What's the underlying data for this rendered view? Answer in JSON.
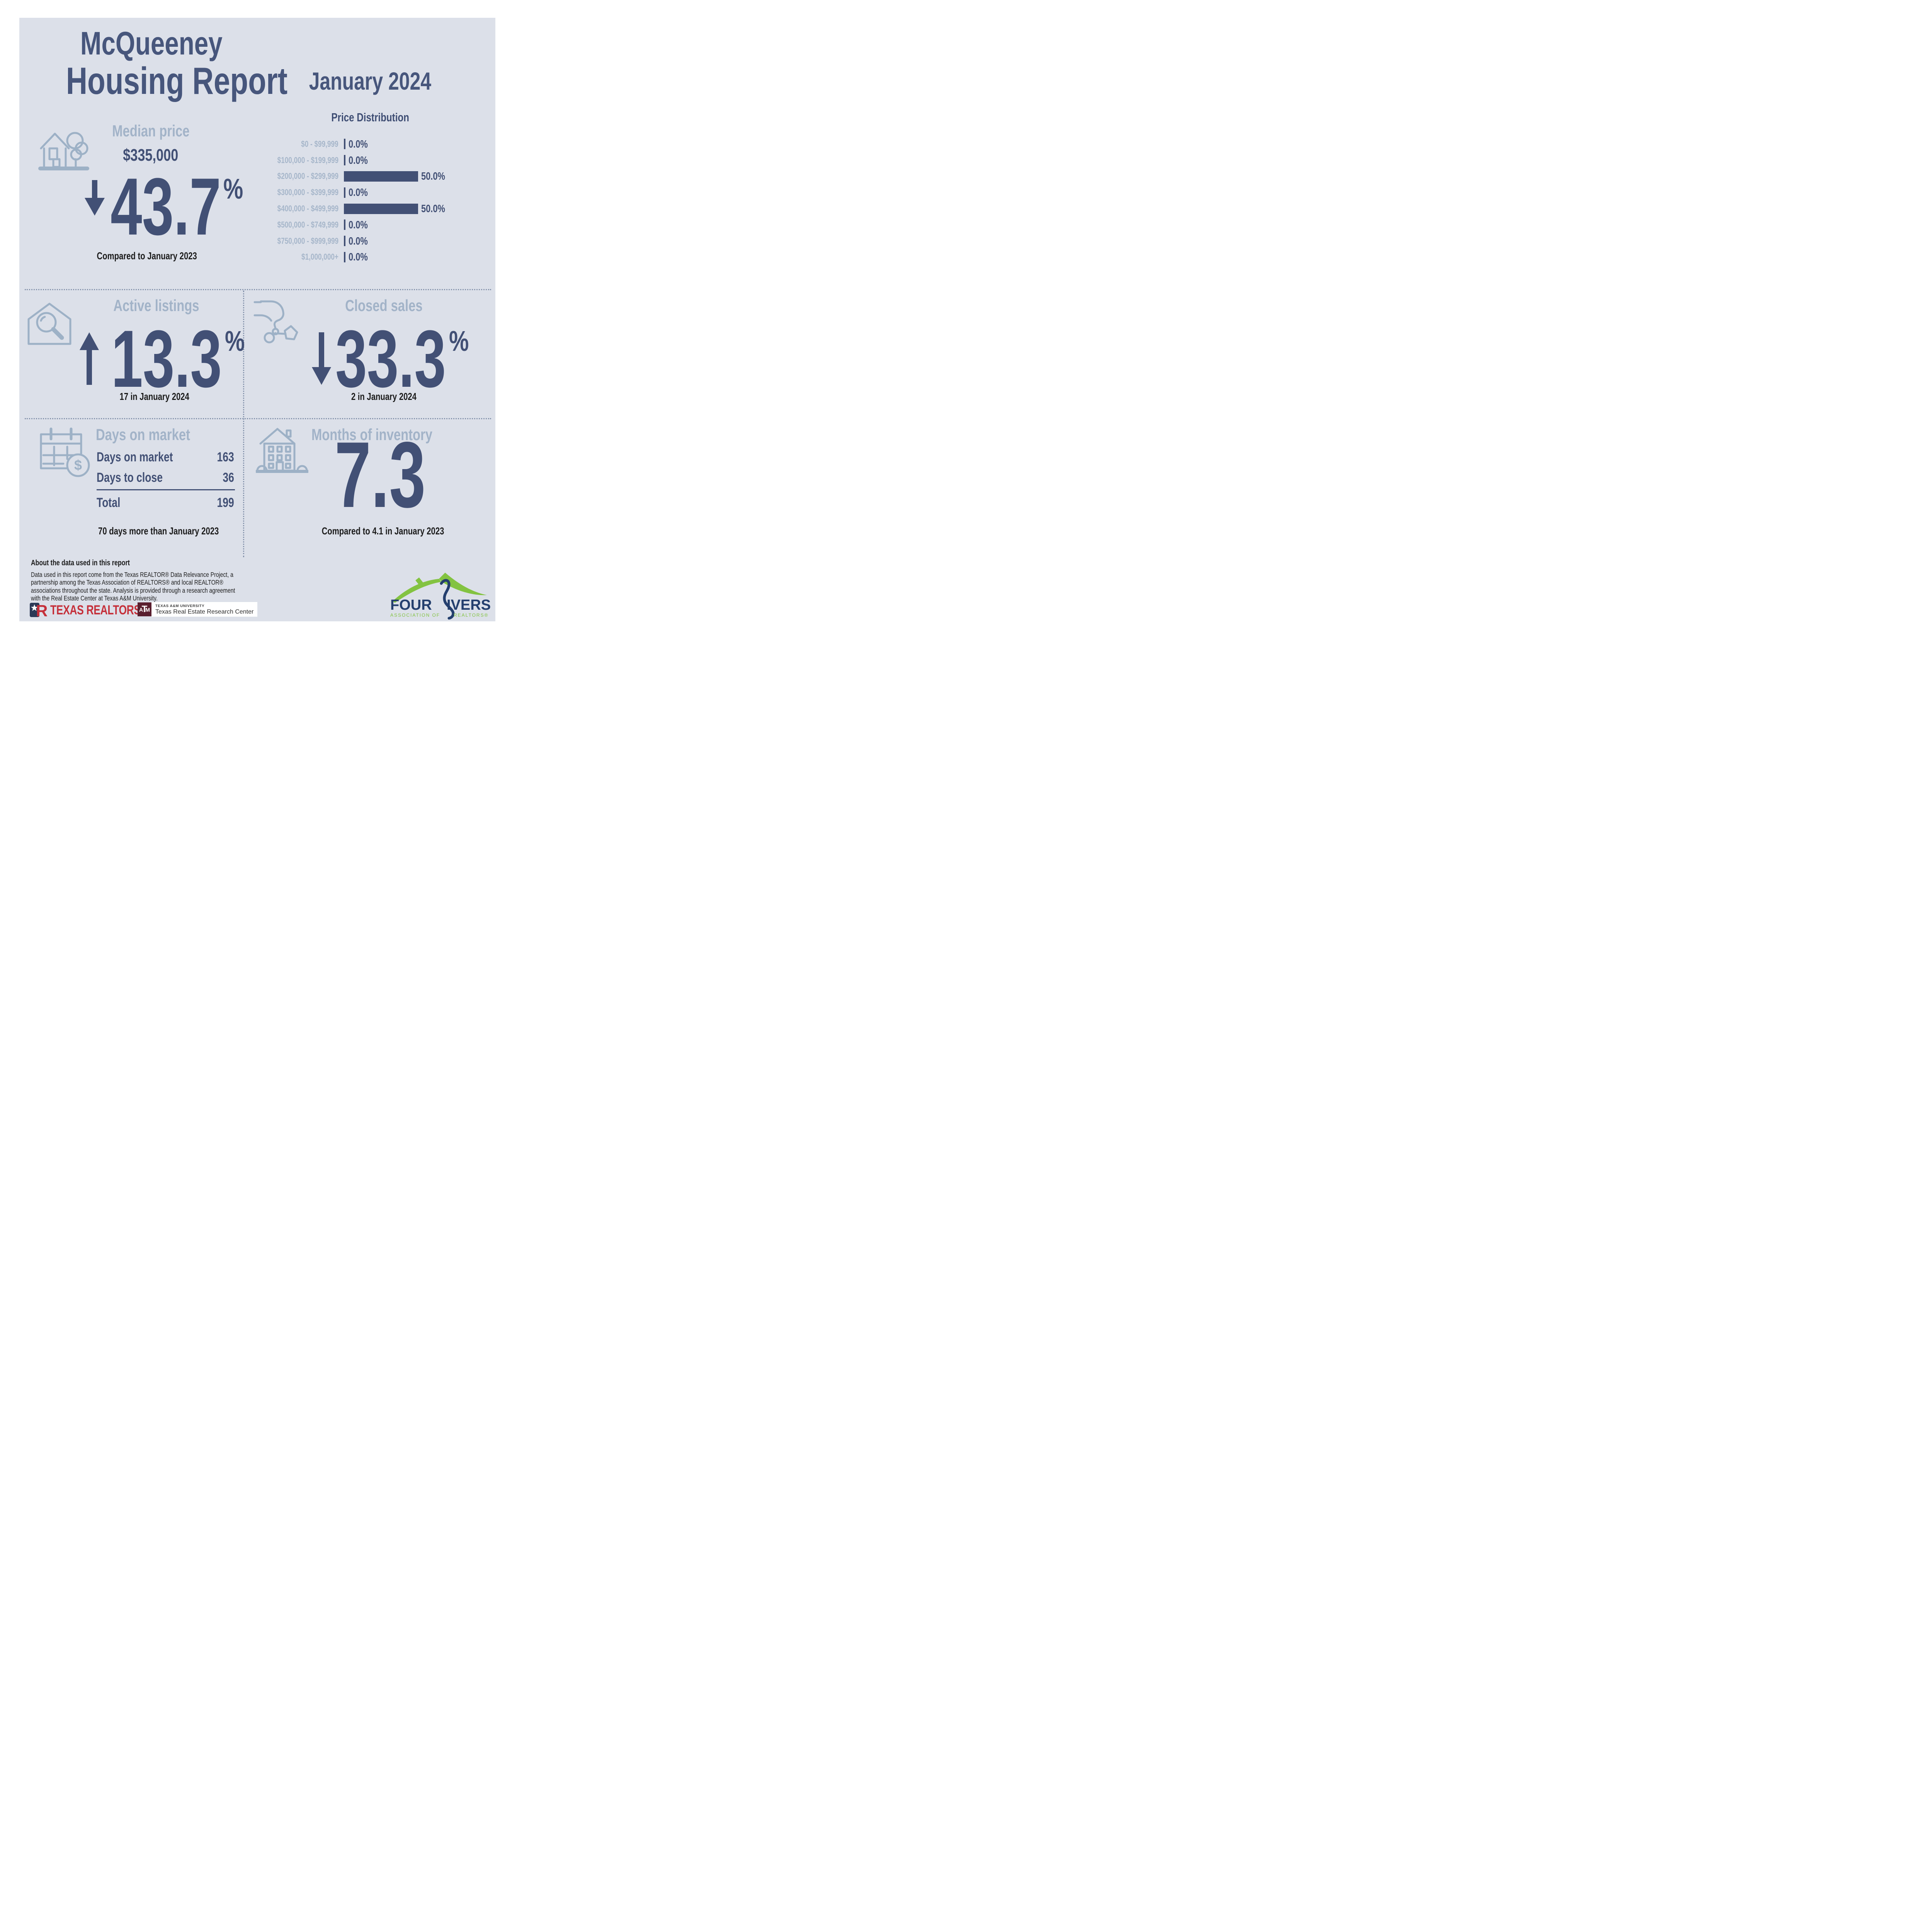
{
  "header": {
    "title_line1": "McQueeney",
    "title_line2": "Housing Report",
    "period": "January 2024"
  },
  "units": {
    "percent": "%"
  },
  "median_price": {
    "label": "Median price",
    "value": "$335,000",
    "change": "43.7",
    "direction": "down",
    "comparison": "Compared to January 2023"
  },
  "chart_data": {
    "type": "bar",
    "orientation": "horizontal",
    "title": "Price Distribution",
    "categories": [
      "$0 - $99,999",
      "$100,000 - $199,999",
      "$200,000 - $299,999",
      "$300,000 - $399,999",
      "$400,000 - $499,999",
      "$500,000 - $749,999",
      "$750,000 - $999,999",
      "$1,000,000+"
    ],
    "values": [
      0.0,
      0.0,
      50.0,
      0.0,
      50.0,
      0.0,
      0.0,
      0.0
    ],
    "value_labels": [
      "0.0%",
      "0.0%",
      "50.0%",
      "0.0%",
      "50.0%",
      "0.0%",
      "0.0%",
      "0.0%"
    ],
    "xlim": [
      0,
      50
    ],
    "unit": "percent",
    "grid": false,
    "legend": false,
    "bar_color": "#425075",
    "label_color": "#a6b6ca"
  },
  "active_listings": {
    "label": "Active listings",
    "change": "13.3",
    "direction": "up",
    "caption": "17 in January 2024"
  },
  "closed_sales": {
    "label": "Closed sales",
    "change": "33.3",
    "direction": "down",
    "caption": "2 in January 2024"
  },
  "days_on_market": {
    "label": "Days on market",
    "rows": [
      {
        "label": "Days on market",
        "value": "163"
      },
      {
        "label": "Days to close",
        "value": "36"
      }
    ],
    "total": {
      "label": "Total",
      "value": "199"
    },
    "caption": "70 days more than January 2023"
  },
  "months_of_inventory": {
    "label": "Months of inventory",
    "value": "7.3",
    "caption": "Compared to 4.1 in January 2023"
  },
  "about": {
    "heading": "About the data used in this report",
    "body": "Data used in this report come from the Texas REALTOR® Data Relevance Project, a partnership among the Texas Association of REALTORS® and local REALTOR® associations throughout the state. Analysis is provided through a research agreement with the Real Estate Center at Texas A&M University."
  },
  "icons": {
    "calendar_dollar_sign": "$"
  },
  "logos": {
    "texas_realtors": {
      "wordmark": "TEXAS REALTORS®",
      "color": "#c5303a"
    },
    "trerc": {
      "monogram": [
        "A",
        "T",
        "M"
      ],
      "line1": "TEXAS A&M UNIVERSITY",
      "line2": "Texas Real Estate Research Center",
      "maroon": "#5a1f2f"
    },
    "four_rivers": {
      "word_left": "FOUR",
      "word_right": "IVERS",
      "subtitle_left": "ASSOCIATION OF",
      "subtitle_right": "REALTORS®",
      "green": "#83c341",
      "navy": "#243f6e"
    }
  },
  "colors": {
    "panel_background": "#dce0e9",
    "navy": "#425075",
    "title_navy": "#47567c",
    "light_blue": "#a2b3c8",
    "icon_blue": "#9db1c6",
    "text_black": "#1b1b1b",
    "divider": "#8896ae"
  }
}
